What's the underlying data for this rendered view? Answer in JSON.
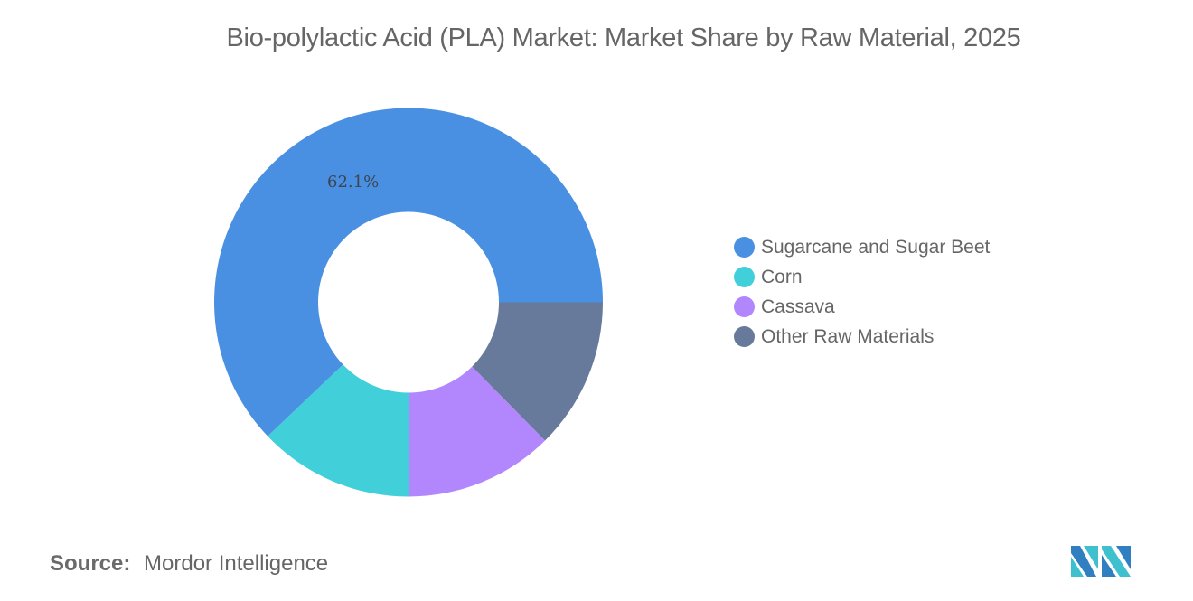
{
  "title": "Bio-polylactic Acid (PLA) Market: Market Share by Raw Material, 2025",
  "source": {
    "label": "Source:",
    "value": "Mordor Intelligence"
  },
  "logo": {
    "icon": "mordor-intelligence-logo-icon",
    "colors": [
      "#2F7FC1",
      "#3FC0CF"
    ]
  },
  "legend": {
    "items": [
      {
        "label": "Sugarcane and Sugar Beet",
        "color": "#4A90E2"
      },
      {
        "label": "Corn",
        "color": "#41CFD9"
      },
      {
        "label": "Cassava",
        "color": "#B286FD"
      },
      {
        "label": "Other Raw Materials",
        "color": "#687A9B"
      }
    ]
  },
  "annotations": {
    "sugarcane_label": "62.1%"
  },
  "chart_data": {
    "type": "pie",
    "subtype": "donut",
    "title": "Bio-polylactic Acid (PLA) Market: Market Share by Raw Material, 2025",
    "categories": [
      "Sugarcane and Sugar Beet",
      "Corn",
      "Cassava",
      "Other Raw Materials"
    ],
    "values": [
      62.1,
      12.9,
      12.4,
      12.6
    ],
    "unit": "%",
    "colors": [
      "#4A90E2",
      "#41CFD9",
      "#B286FD",
      "#687A9B"
    ],
    "data_labels": [
      {
        "category": "Sugarcane and Sugar Beet",
        "text": "62.1%"
      }
    ],
    "legend_position": "right",
    "source": "Mordor Intelligence"
  }
}
